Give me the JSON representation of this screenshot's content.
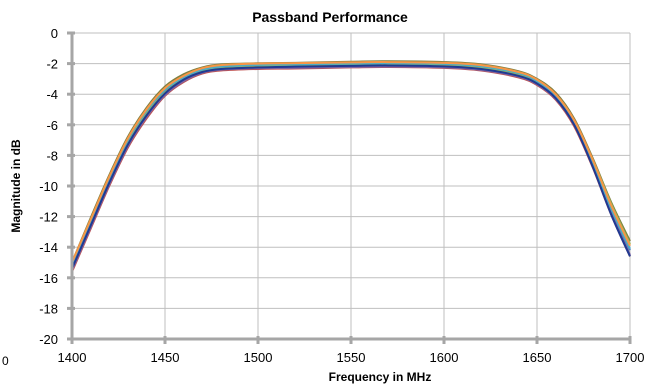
{
  "chart_data": {
    "type": "line",
    "title": "Passband Performance",
    "xlabel": "Frequency in MHz",
    "ylabel": "Magnitude in dB",
    "xlim": [
      1400,
      1700
    ],
    "ylim": [
      -20,
      0
    ],
    "xticks": [
      1400,
      1450,
      1500,
      1550,
      1600,
      1650,
      1700
    ],
    "yticks": [
      0,
      -2,
      -4,
      -6,
      -8,
      -10,
      -12,
      -14,
      -16,
      -18,
      -20
    ],
    "grid": true,
    "legend": "none",
    "stray_label": "0",
    "x": [
      1400,
      1410,
      1420,
      1430,
      1440,
      1450,
      1460,
      1470,
      1480,
      1500,
      1520,
      1550,
      1570,
      1600,
      1620,
      1640,
      1650,
      1660,
      1670,
      1680,
      1690,
      1700
    ],
    "series": [
      {
        "color": "#7f7f3f",
        "values": [
          -15.0,
          -12.1,
          -9.3,
          -6.8,
          -4.9,
          -3.5,
          -2.7,
          -2.25,
          -2.05,
          -1.98,
          -1.95,
          -1.88,
          -1.85,
          -1.9,
          -2.05,
          -2.5,
          -3.0,
          -3.9,
          -5.6,
          -8.2,
          -11.1,
          -13.6
        ]
      },
      {
        "color": "#4f81bd",
        "values": [
          -15.2,
          -12.4,
          -9.6,
          -7.1,
          -5.2,
          -3.8,
          -2.95,
          -2.45,
          -2.25,
          -2.12,
          -2.08,
          -2.02,
          -2.0,
          -2.05,
          -2.2,
          -2.68,
          -3.2,
          -4.15,
          -5.9,
          -8.6,
          -11.6,
          -14.2
        ]
      },
      {
        "color": "#c0504d",
        "values": [
          -15.6,
          -12.8,
          -10.0,
          -7.5,
          -5.6,
          -4.1,
          -3.2,
          -2.65,
          -2.45,
          -2.35,
          -2.32,
          -2.25,
          -2.22,
          -2.28,
          -2.45,
          -2.9,
          -3.4,
          -4.35,
          -6.1,
          -8.8,
          -11.9,
          -14.6
        ]
      },
      {
        "color": "#9bbb59",
        "values": [
          -15.3,
          -12.5,
          -9.7,
          -7.2,
          -5.3,
          -3.9,
          -3.0,
          -2.5,
          -2.3,
          -2.2,
          -2.15,
          -2.1,
          -2.08,
          -2.12,
          -2.3,
          -2.75,
          -3.25,
          -4.2,
          -5.8,
          -8.3,
          -11.2,
          -13.8
        ]
      },
      {
        "color": "#8064a2",
        "values": [
          -15.5,
          -12.7,
          -9.9,
          -7.4,
          -5.5,
          -4.05,
          -3.15,
          -2.6,
          -2.4,
          -2.3,
          -2.28,
          -2.22,
          -2.2,
          -2.25,
          -2.42,
          -2.85,
          -3.35,
          -4.3,
          -6.0,
          -8.7,
          -11.8,
          -14.5
        ]
      },
      {
        "color": "#4bacc6",
        "values": [
          -15.1,
          -12.3,
          -9.5,
          -7.0,
          -5.1,
          -3.7,
          -2.9,
          -2.4,
          -2.2,
          -2.08,
          -2.05,
          -2.0,
          -1.98,
          -2.02,
          -2.18,
          -2.62,
          -3.15,
          -4.1,
          -5.85,
          -8.5,
          -11.5,
          -14.1
        ]
      },
      {
        "color": "#f79646",
        "values": [
          -15.0,
          -12.2,
          -9.4,
          -6.9,
          -5.0,
          -3.6,
          -2.8,
          -2.3,
          -2.1,
          -2.0,
          -1.97,
          -1.92,
          -1.9,
          -1.95,
          -2.1,
          -2.55,
          -3.05,
          -4.0,
          -5.7,
          -8.3,
          -11.3,
          -13.9
        ]
      },
      {
        "color": "#1f3a93",
        "values": [
          -15.4,
          -12.6,
          -9.8,
          -7.3,
          -5.4,
          -3.95,
          -3.05,
          -2.55,
          -2.35,
          -2.25,
          -2.2,
          -2.15,
          -2.12,
          -2.18,
          -2.35,
          -2.8,
          -3.3,
          -4.25,
          -6.0,
          -8.75,
          -11.9,
          -14.6
        ]
      }
    ]
  }
}
